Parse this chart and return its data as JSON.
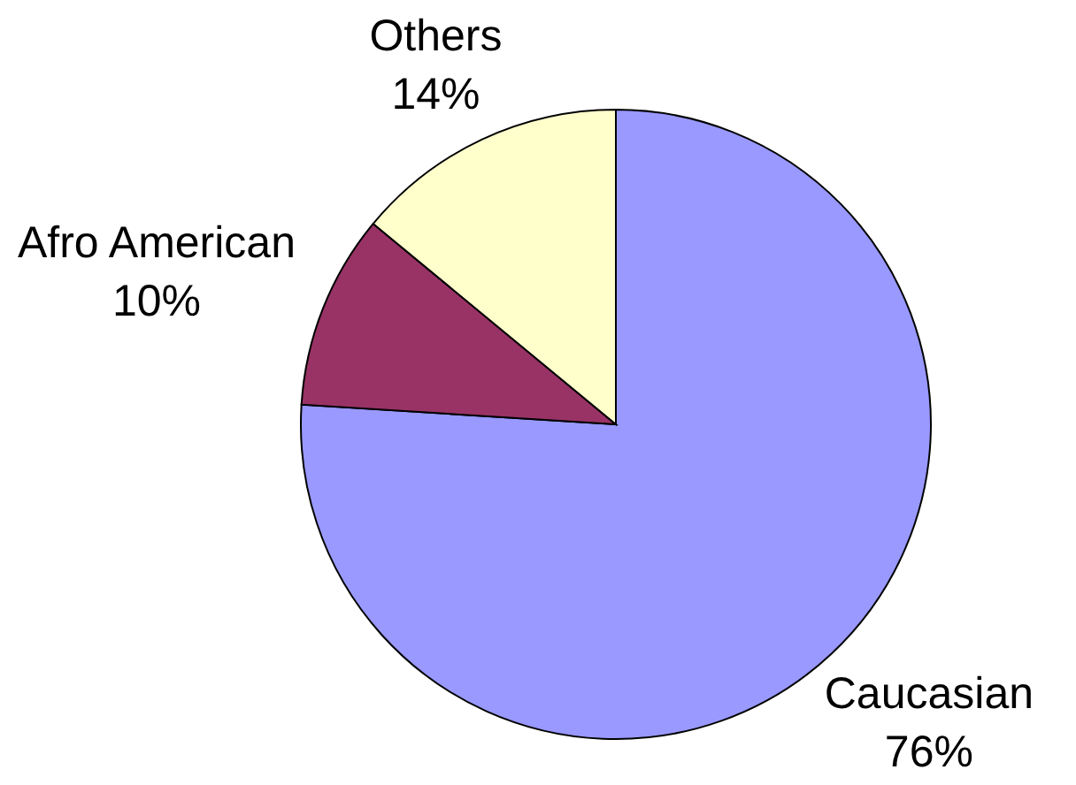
{
  "chart_data": {
    "type": "pie",
    "categories": [
      "Caucasian",
      "Afro American",
      "Others"
    ],
    "values": [
      76,
      10,
      14
    ],
    "colors": [
      "#9999ff",
      "#993366",
      "#ffffcc"
    ],
    "value_labels": [
      "76%",
      "10%",
      "14%"
    ]
  }
}
